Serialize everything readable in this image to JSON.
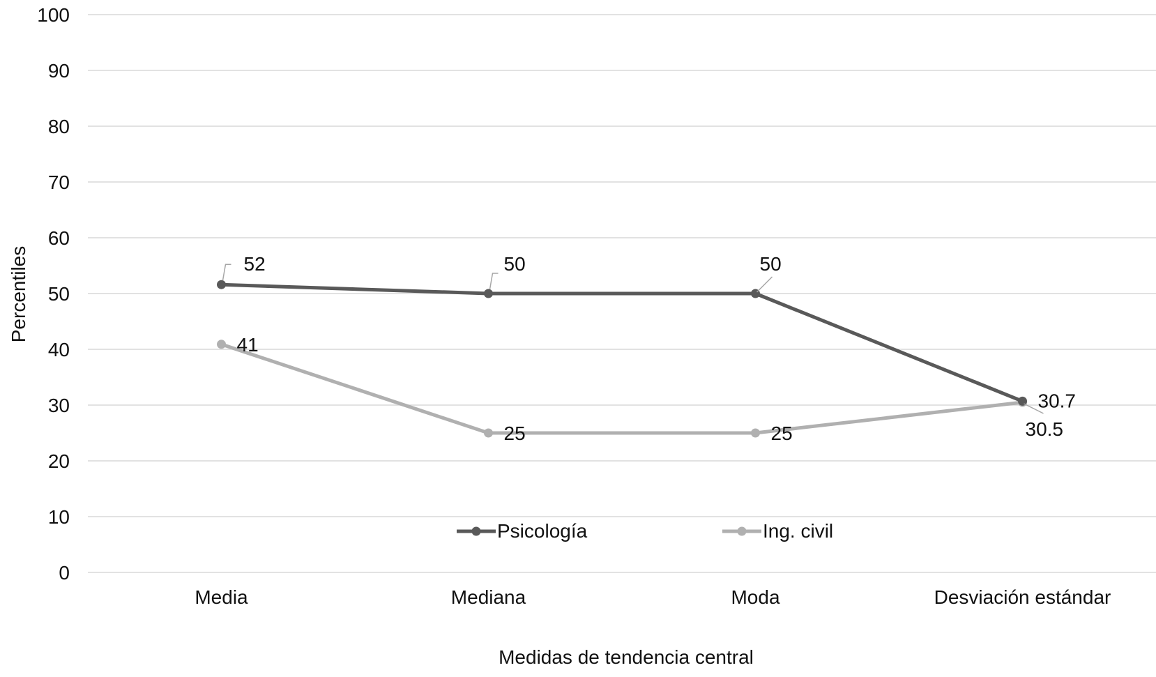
{
  "chart_data": {
    "type": "line",
    "title": "",
    "xlabel": "Medidas de tendencia central",
    "ylabel": "Percentiles",
    "ylim": [
      0,
      100
    ],
    "yticks": [
      0,
      10,
      20,
      30,
      40,
      50,
      60,
      70,
      80,
      90,
      100
    ],
    "grid": true,
    "legend_position": "inside-bottom-center",
    "categories": [
      "Media",
      "Mediana",
      "Moda",
      "Desviación estándar"
    ],
    "series": [
      {
        "name": "Psicología",
        "values": [
          51.6,
          50,
          50,
          30.7
        ],
        "labels": [
          "52",
          "50",
          "50",
          "30.7"
        ],
        "color": "#595959"
      },
      {
        "name": "Ing. civil",
        "values": [
          40.9,
          25,
          25,
          30.5
        ],
        "labels": [
          "41",
          "25",
          "25",
          "30.5"
        ],
        "color": "#b0b0b0"
      }
    ]
  }
}
